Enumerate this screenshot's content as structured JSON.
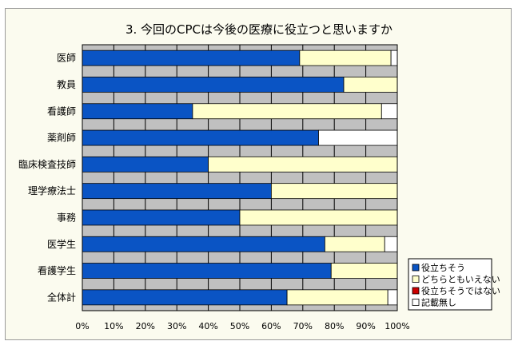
{
  "chart_data": {
    "type": "bar",
    "orientation": "horizontal",
    "stacked": true,
    "title": "3. 今回のCPCは今後の医療に役立つと思いますか",
    "categories": [
      "医師",
      "教員",
      "看護師",
      "薬剤師",
      "臨床検査技師",
      "理学療法士",
      "事務",
      "医学生",
      "看護学生",
      "全体計"
    ],
    "series": [
      {
        "name": "役立ちそう",
        "color": "#0a54c4",
        "values": [
          69,
          83,
          35,
          75,
          40,
          60,
          50,
          77,
          79,
          65
        ]
      },
      {
        "name": "どちらともいえない",
        "color": "#ffffcc",
        "values": [
          29,
          17,
          60,
          0,
          60,
          40,
          50,
          19,
          21,
          32
        ]
      },
      {
        "name": "役立ちそうではない",
        "color": "#cc0000",
        "values": [
          0,
          0,
          0,
          0,
          0,
          0,
          0,
          0,
          0,
          0
        ]
      },
      {
        "name": "記載無し",
        "color": "#ffffff",
        "values": [
          2,
          0,
          5,
          25,
          0,
          0,
          0,
          4,
          0,
          3
        ]
      }
    ],
    "xlim": [
      0,
      100
    ],
    "xticks": [
      "0%",
      "10%",
      "20%",
      "30%",
      "40%",
      "50%",
      "60%",
      "70%",
      "80%",
      "90%",
      "100%"
    ],
    "grid": true,
    "legend_position": "bottom-right"
  }
}
